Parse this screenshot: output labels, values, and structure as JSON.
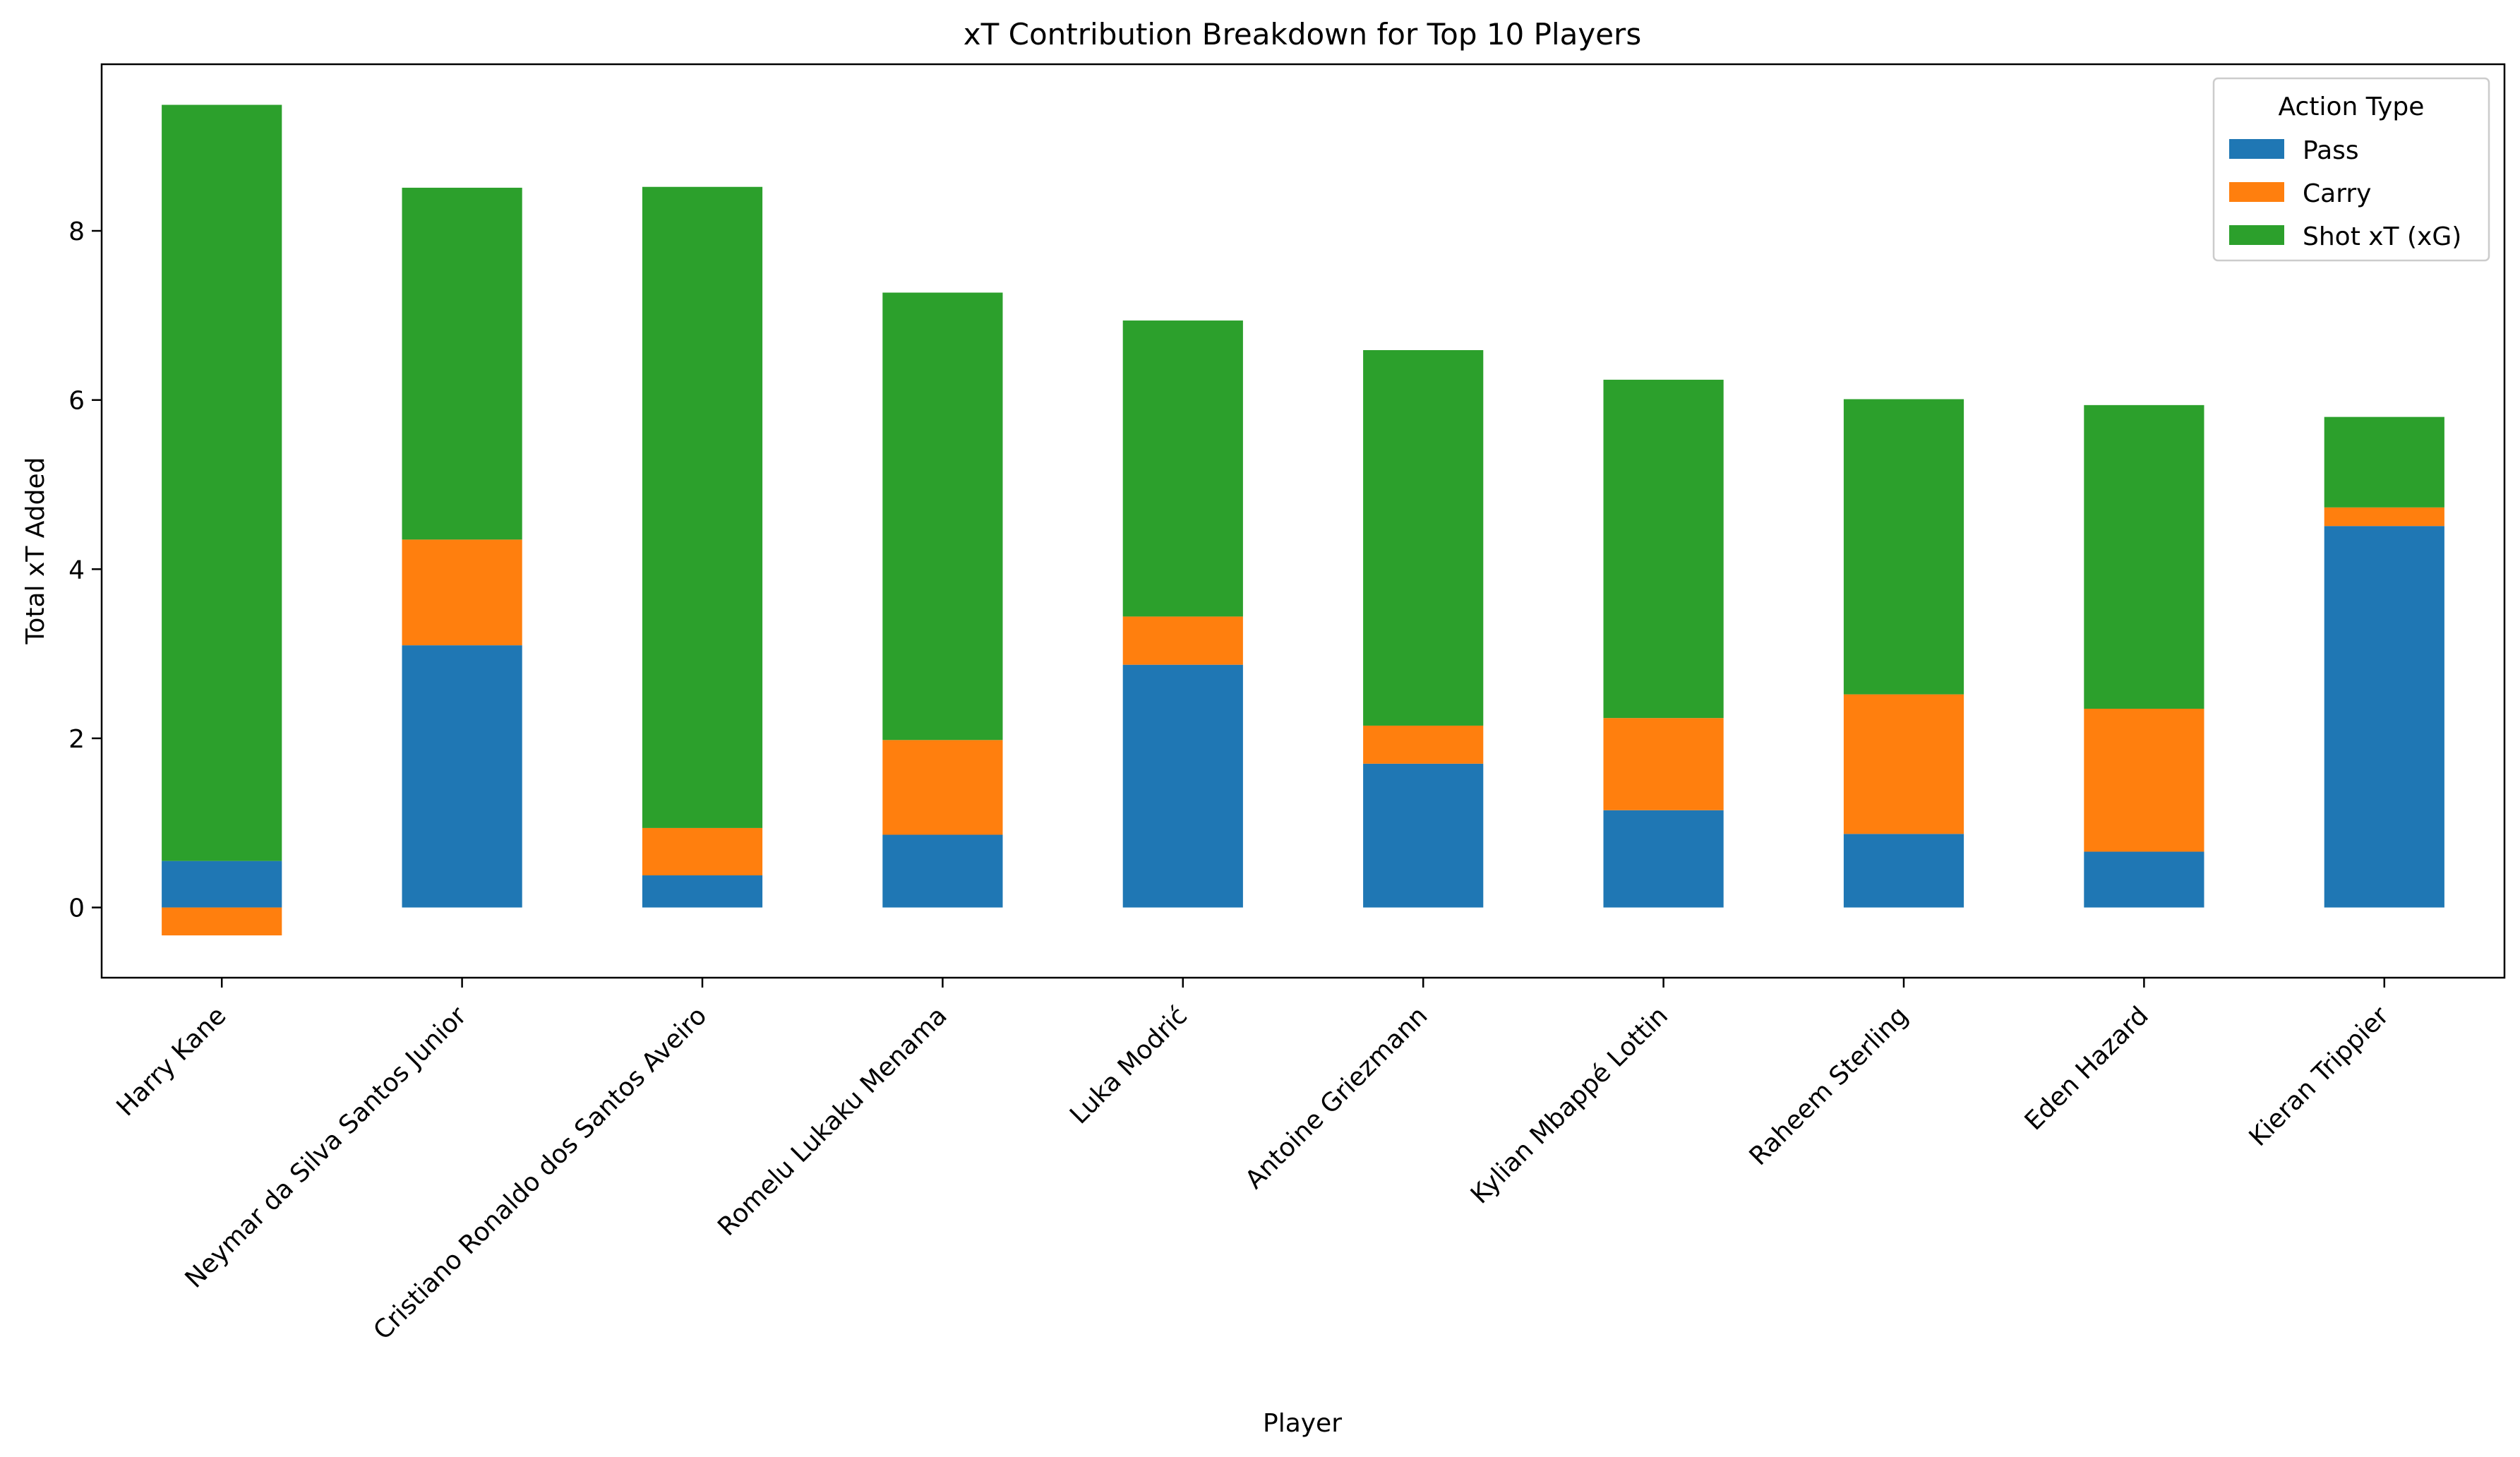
{
  "chart_data": {
    "type": "bar",
    "stacked": true,
    "title": "xT Contribution Breakdown for Top 10 Players",
    "xlabel": "Player",
    "ylabel": "Total xT Added",
    "ylim": [
      -0.83,
      9.97
    ],
    "yticks": [
      0,
      2,
      4,
      6,
      8
    ],
    "grid": false,
    "legend": {
      "title": "Action Type",
      "placement": "top-right"
    },
    "categories": [
      "Harry Kane",
      "Neymar da Silva Santos Junior",
      "Cristiano Ronaldo dos Santos Aveiro",
      "Romelu Lukaku Menama",
      "Luka Modrić",
      "Antoine Griezmann",
      "Kylian Mbappé Lottin",
      "Raheem Sterling",
      "Eden Hazard",
      "Kieran Trippier"
    ],
    "series": [
      {
        "name": "Pass",
        "color": "#1f77b4",
        "values": [
          0.55,
          3.1,
          0.38,
          0.86,
          2.87,
          1.7,
          1.15,
          0.87,
          0.66,
          4.51
        ]
      },
      {
        "name": "Carry",
        "color": "#ff7f0e",
        "values": [
          -0.33,
          1.25,
          0.56,
          1.12,
          0.57,
          0.45,
          1.09,
          1.65,
          1.69,
          0.22
        ]
      },
      {
        "name": "Shot xT (xG)",
        "color": "#2ca02c",
        "values": [
          8.94,
          4.16,
          7.58,
          5.29,
          3.5,
          4.44,
          4.0,
          3.49,
          3.59,
          1.07
        ]
      }
    ]
  }
}
